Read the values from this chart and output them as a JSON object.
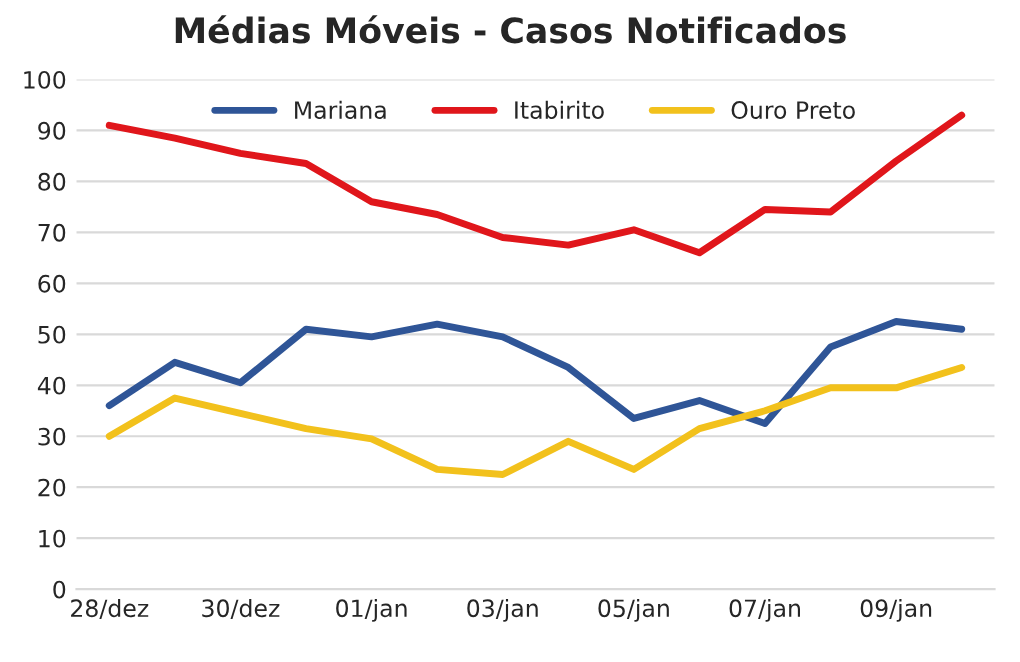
{
  "chart_data": {
    "type": "line",
    "title": "Médias Móveis - Casos Notificados",
    "categories": [
      "28/dez",
      null,
      "30/dez",
      null,
      "01/jan",
      null,
      "03/jan",
      null,
      "05/jan",
      null,
      "07/jan",
      null,
      "09/jan",
      null
    ],
    "series": [
      {
        "name": "Mariana",
        "color": "#2f5597",
        "values": [
          36,
          44.5,
          40.5,
          51,
          49.5,
          52,
          49.5,
          43.5,
          33.5,
          37,
          32.5,
          47.5,
          52.5,
          51
        ]
      },
      {
        "name": "Itabirito",
        "color": "#e0161b",
        "values": [
          91,
          88.5,
          85.5,
          83.5,
          76,
          73.5,
          69,
          67.5,
          70.5,
          66,
          74.5,
          74,
          84,
          93
        ]
      },
      {
        "name": "Ouro Preto",
        "color": "#f2c11c",
        "values": [
          30,
          37.5,
          34.5,
          31.5,
          29.5,
          23.5,
          22.5,
          29,
          23.5,
          31.5,
          35,
          39.5,
          39.5,
          43.5
        ]
      }
    ],
    "ylim": [
      0,
      100
    ],
    "yticks": [
      0,
      10,
      20,
      30,
      40,
      50,
      60,
      70,
      80,
      90,
      100
    ],
    "grid": "y",
    "legend": "top",
    "marker": "none",
    "line_style": "solid"
  }
}
